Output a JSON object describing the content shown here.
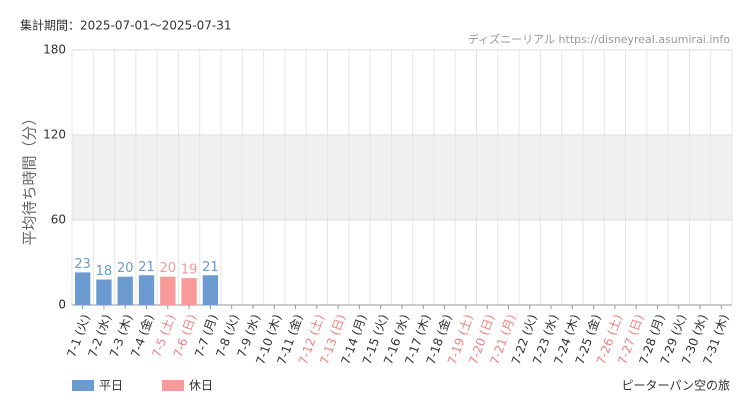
{
  "chart_data": {
    "type": "bar",
    "title": "集計期間：2025-07-01〜2025-07-31",
    "source": "ディズニーリアル https://disneyreal.asumirai.info",
    "y_label": "平均待ち時間（分）",
    "attraction": "ピーターパン空の旅",
    "categories": [
      "7-1 (火)",
      "7-2 (水)",
      "7-3 (木)",
      "7-4 (金)",
      "7-5 (土)",
      "7-6 (日)",
      "7-7 (月)",
      "7-8 (火)",
      "7-9 (水)",
      "7-10 (木)",
      "7-11 (金)",
      "7-12 (土)",
      "7-13 (日)",
      "7-14 (月)",
      "7-15 (火)",
      "7-16 (水)",
      "7-17 (木)",
      "7-18 (金)",
      "7-19 (土)",
      "7-20 (日)",
      "7-21 (月)",
      "7-22 (火)",
      "7-23 (水)",
      "7-24 (木)",
      "7-25 (金)",
      "7-26 (土)",
      "7-27 (日)",
      "7-28 (月)",
      "7-29 (火)",
      "7-30 (水)",
      "7-31 (木)"
    ],
    "category_colors": [
      "#333",
      "#333",
      "#333",
      "#333",
      "#f08080",
      "#f08080",
      "#333",
      "#333",
      "#333",
      "#333",
      "#333",
      "#f08080",
      "#f08080",
      "#333",
      "#333",
      "#333",
      "#333",
      "#333",
      "#f08080",
      "#f08080",
      "#f08080",
      "#333",
      "#333",
      "#333",
      "#333",
      "#f08080",
      "#f08080",
      "#333",
      "#333",
      "#333",
      "#333"
    ],
    "series": [
      {
        "name": "平日",
        "color": "#6b9bd1",
        "values": [
          23,
          18,
          20,
          21,
          null,
          null,
          21,
          null,
          null,
          null,
          null,
          null,
          null,
          null,
          null,
          null,
          null,
          null,
          null,
          null,
          null,
          null,
          null,
          null,
          null,
          null,
          null,
          null,
          null,
          null,
          null
        ]
      },
      {
        "name": "休日",
        "color": "#f89a9a",
        "values": [
          null,
          null,
          null,
          null,
          20,
          19,
          null,
          null,
          null,
          null,
          null,
          null,
          null,
          null,
          null,
          null,
          null,
          null,
          null,
          null,
          null,
          null,
          null,
          null,
          null,
          null,
          null,
          null,
          null,
          null,
          null
        ]
      }
    ],
    "ylim": [
      0,
      180
    ],
    "yticks": [
      0,
      60,
      120,
      180
    ],
    "grid": true
  }
}
